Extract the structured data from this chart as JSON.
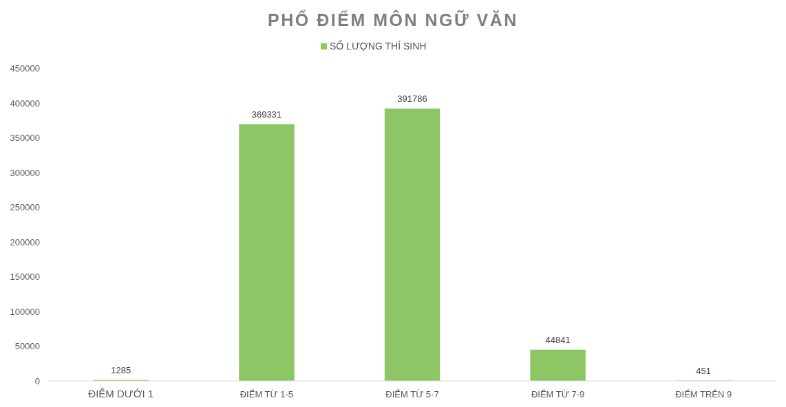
{
  "chart_data": {
    "type": "bar",
    "title": "PHỔ ĐIỂM MÔN NGỮ VĂN",
    "categories": [
      "ĐIỂM DƯỚI 1",
      "ĐIỂM TỪ 1-5",
      "ĐIỂM TỪ 5-7",
      "ĐIỂM TỪ 7-9",
      "ĐIỂM TRÊN 9"
    ],
    "series": [
      {
        "name": "SỐ LƯỢNG THÍ SINH",
        "color": "#8cc665",
        "values": [
          1285,
          369331,
          391786,
          44841,
          451
        ]
      }
    ],
    "ylim": [
      0,
      450000
    ],
    "yticks": [
      0,
      50000,
      100000,
      150000,
      200000,
      250000,
      300000,
      350000,
      400000,
      450000
    ],
    "data_labels": true,
    "legend": "top",
    "grid": false
  }
}
